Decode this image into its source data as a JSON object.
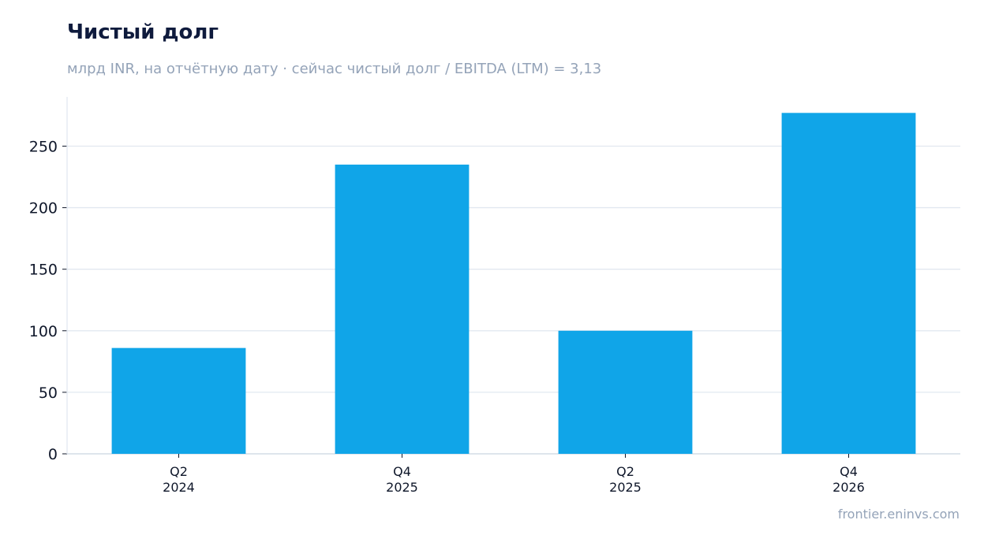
{
  "title": "Чистый долг",
  "subtitle": "млрд INR, на отчётную дату · сейчас чистый долг / EBITDA (LTM) = 3,13",
  "source": "frontier.eninvs.com",
  "colors": {
    "bar": "#10a5e8",
    "grid": "#e2e8f0",
    "axis": "#cbd5e1"
  },
  "chart_data": {
    "type": "bar",
    "categories": [
      [
        "Q2",
        "2024"
      ],
      [
        "Q4",
        "2025"
      ],
      [
        "Q2",
        "2025"
      ],
      [
        "Q4",
        "2026"
      ]
    ],
    "values": [
      86,
      235,
      100,
      277
    ],
    "ylim": [
      0,
      290
    ],
    "yticks": [
      0,
      50,
      100,
      150,
      200,
      250
    ],
    "grid": true,
    "legend": "none"
  }
}
